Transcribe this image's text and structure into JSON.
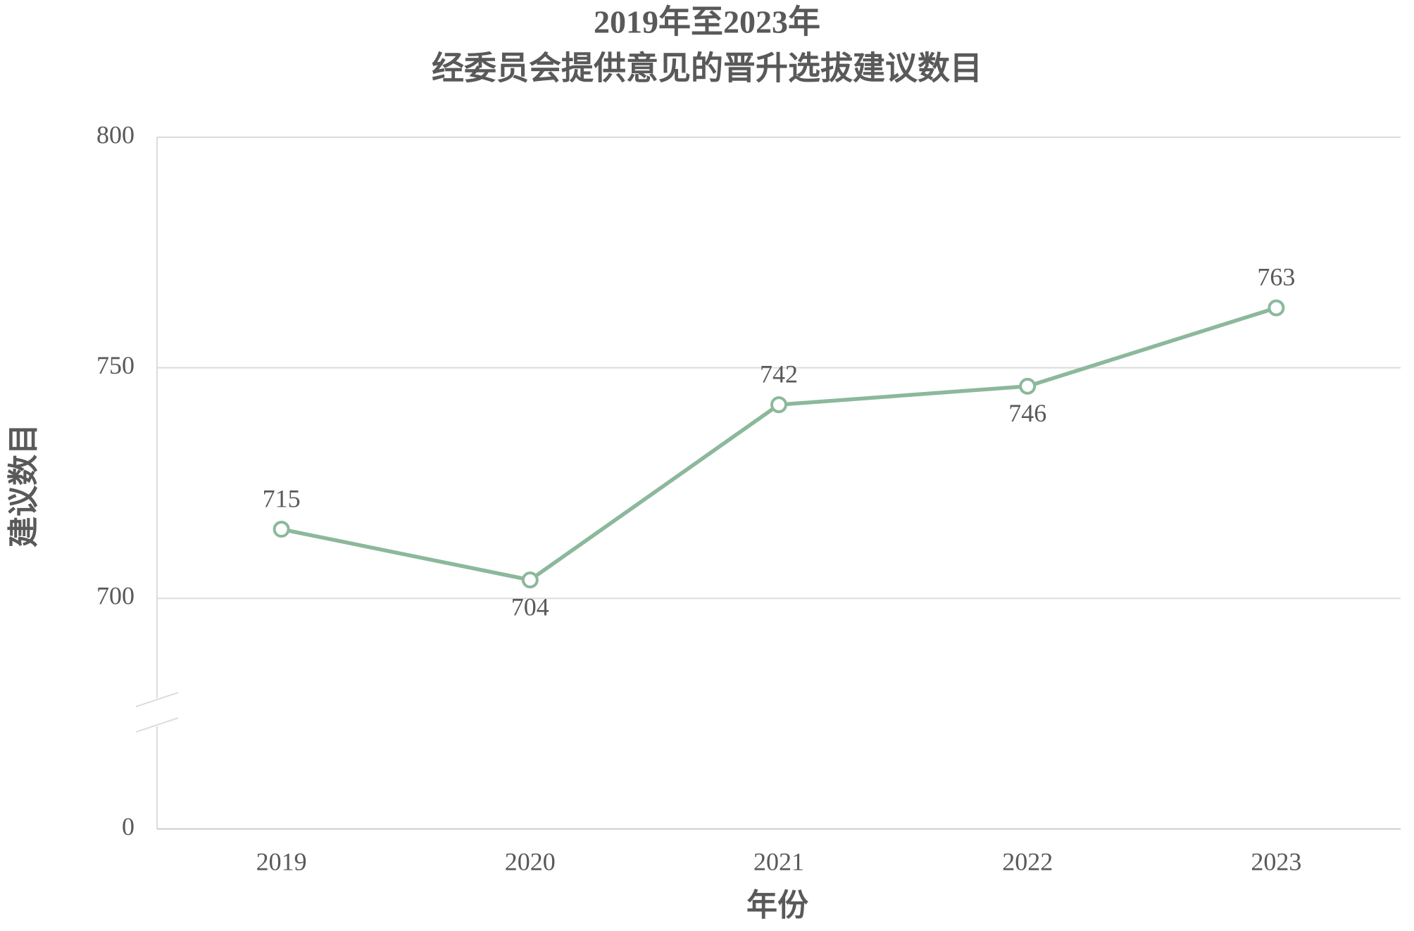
{
  "chart_data": {
    "type": "line",
    "title": [
      "2019年至2023年",
      "经委员会提供意见的晋升选拔建议数目"
    ],
    "x_label": "年份",
    "y_label": "建议数目",
    "categories": [
      "2019",
      "2020",
      "2021",
      "2022",
      "2023"
    ],
    "values": [
      715,
      704,
      742,
      746,
      763
    ],
    "label_positions": [
      "above",
      "below",
      "above",
      "below",
      "above"
    ],
    "color": "#8cb89c",
    "ylim": [
      0,
      800
    ],
    "yticks": [
      0,
      700,
      750,
      800
    ],
    "axis_break": true,
    "grid": true
  }
}
